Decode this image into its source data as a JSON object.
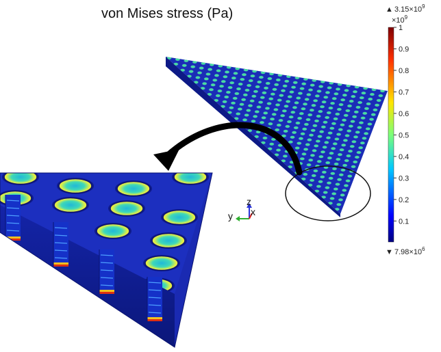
{
  "title": "von Mises stress (Pa)",
  "colorbar": {
    "max_mantissa": "3.15",
    "max_exponent": "9",
    "multiplier_base": "×10",
    "multiplier_exponent": "9",
    "ticks": [
      "1",
      "0.9",
      "0.8",
      "0.7",
      "0.6",
      "0.5",
      "0.4",
      "0.3",
      "0.2",
      "0.1"
    ],
    "tick_values": [
      1,
      0.9,
      0.8,
      0.7,
      0.6,
      0.5,
      0.4,
      0.3,
      0.2,
      0.1
    ],
    "min_mantissa": "7.98",
    "min_exponent": "6",
    "times": "×10",
    "max_marker": "▲",
    "min_marker": "▼"
  },
  "axes_triad": {
    "z": "z",
    "y": "y",
    "x": "x"
  },
  "colors": {
    "plate": "#1b2fb8",
    "plate_dark": "#0f1c86",
    "hole_ring": "#7ae07a",
    "hole_center": "#2fd3c3",
    "hole_hot": "#e8e640"
  }
}
